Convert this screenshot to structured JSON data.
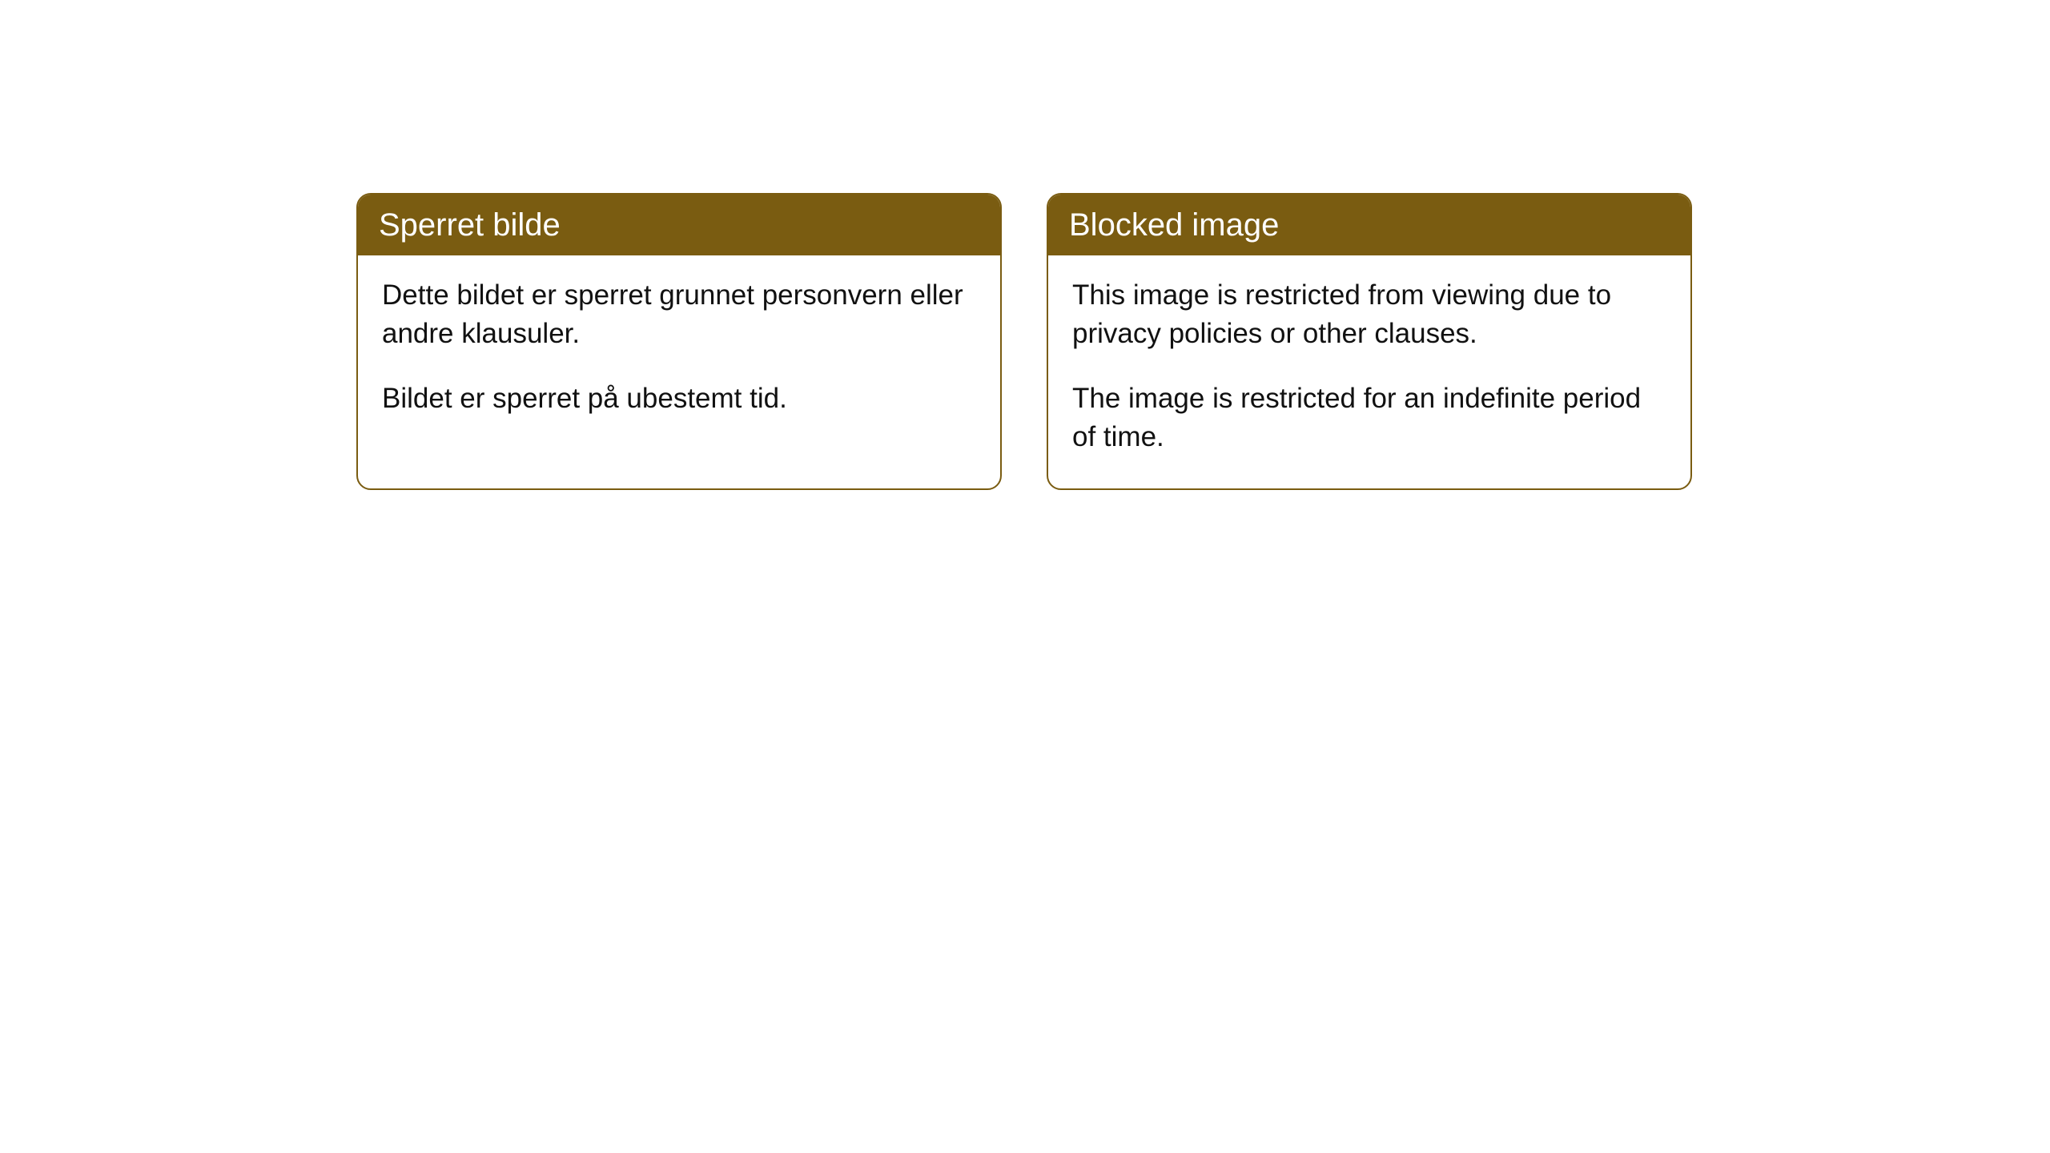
{
  "cards": [
    {
      "title": "Sperret bilde",
      "paragraph1": "Dette bildet er sperret grunnet personvern eller andre klausuler.",
      "paragraph2": "Bildet er sperret på ubestemt tid."
    },
    {
      "title": "Blocked image",
      "paragraph1": "This image is restricted from viewing due to privacy policies or other clauses.",
      "paragraph2": "The image is restricted for an indefinite period of time."
    }
  ],
  "style": {
    "header_bg": "#7a5c11",
    "header_text_color": "#ffffff",
    "border_color": "#7a5c11",
    "body_text_color": "#111111",
    "page_bg": "#ffffff",
    "border_radius": 18,
    "title_fontsize": 40,
    "body_fontsize": 35
  }
}
